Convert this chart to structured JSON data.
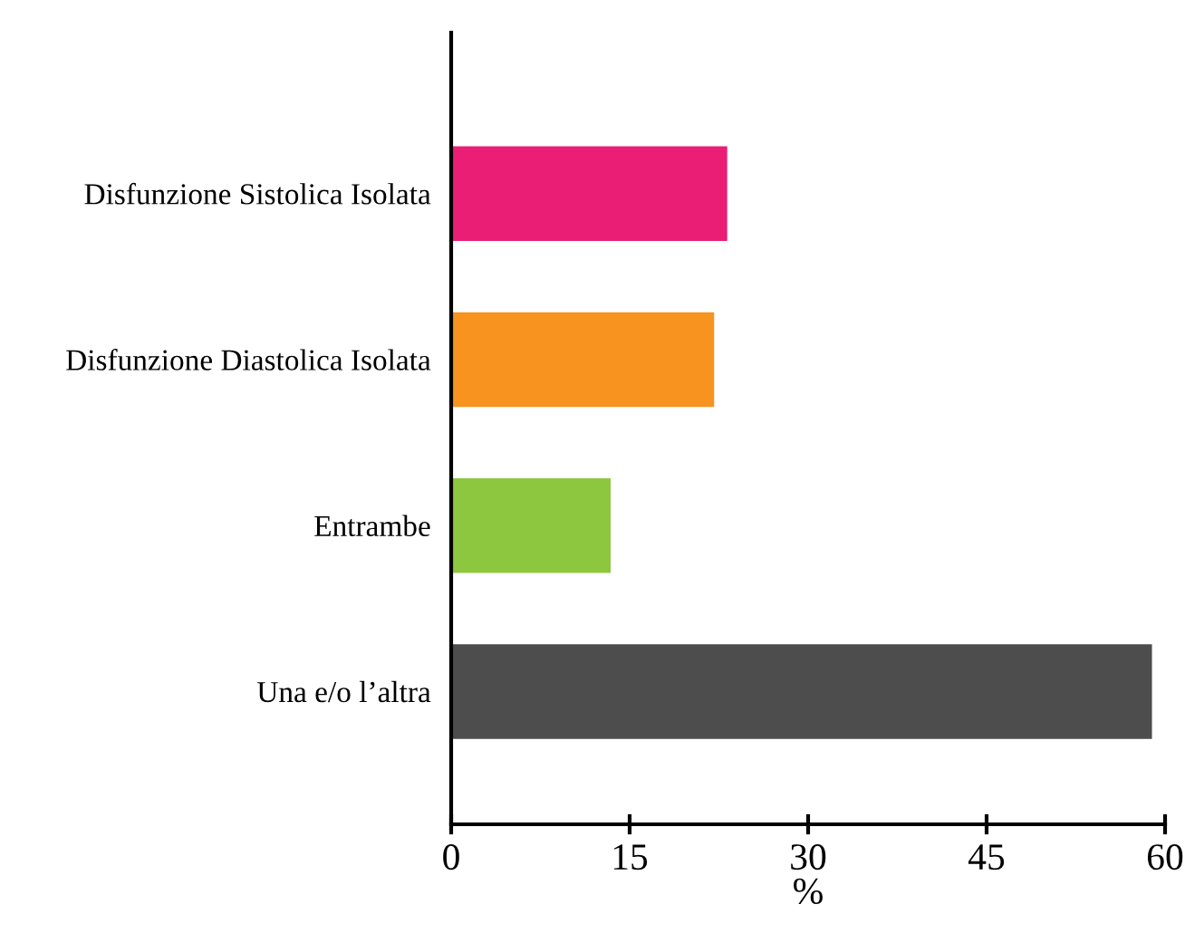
{
  "chart_data": {
    "type": "bar",
    "orientation": "horizontal",
    "xlabel": "%",
    "categories": [
      "Disfunzione Sistolica Isolata",
      "Disfunzione Diastolica Isolata",
      "Entrambe",
      "Una e/o l’altra"
    ],
    "values": [
      23.2,
      22.1,
      13.4,
      58.9
    ],
    "colors": [
      "#e91e74",
      "#f7931e",
      "#8dc63f",
      "#4d4d4d"
    ],
    "xlim": [
      0,
      60
    ],
    "xticks": [
      0,
      15,
      30,
      45,
      60
    ],
    "grid": false,
    "legend": false
  }
}
